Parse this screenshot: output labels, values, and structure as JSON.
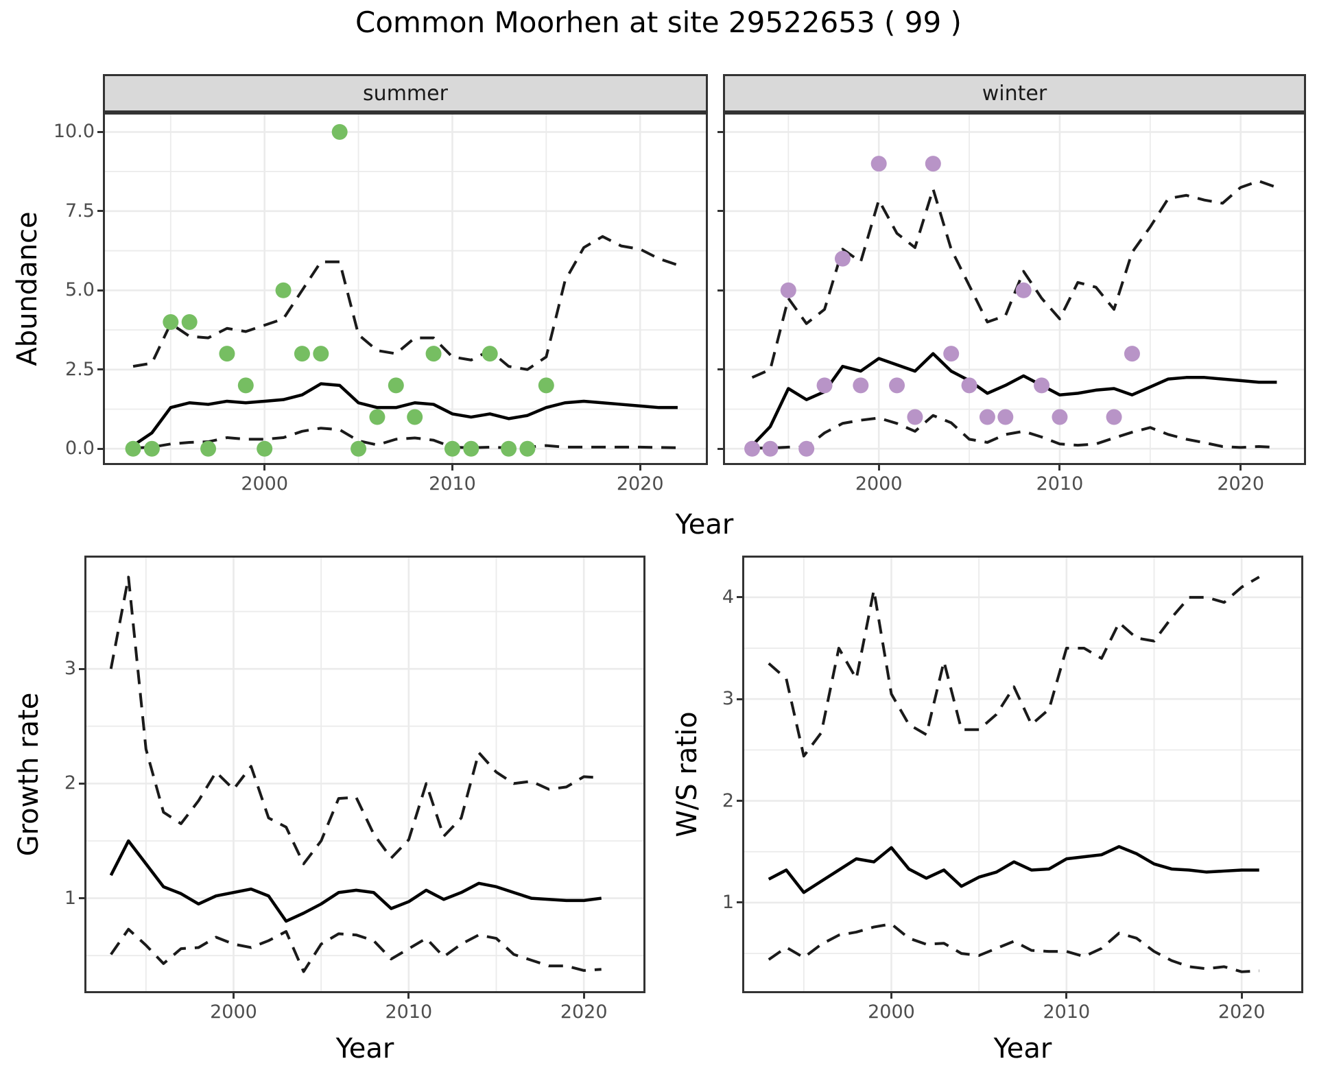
{
  "title": "Common Moorhen at site 29522653 ( 99 )",
  "facets": {
    "summer": "summer",
    "winter": "winter"
  },
  "axis_titles": {
    "abundance": "Abundance",
    "growth_rate": "Growth rate",
    "ws_ratio": "W/S ratio",
    "year": "Year"
  },
  "colors": {
    "summer_point": "#76be62",
    "winter_point": "#b894c7",
    "mean_line": "#000000",
    "ci_line": "#1a1a1a",
    "grid": "#ebebeb",
    "panel_border": "#333333",
    "strip_bg": "#d9d9d9",
    "tick_text": "#4d4d4d"
  },
  "chart_data": [
    {
      "id": "abundance-summer",
      "type": "line",
      "facet_label": "summer",
      "xlabel": "Year",
      "ylabel": "Abundance",
      "x_range": [
        1991.5,
        2023.5
      ],
      "y_range": [
        -0.45,
        10.55
      ],
      "x_ticks": [
        2000,
        2010,
        2020
      ],
      "x_minor": [
        1995,
        2005,
        2015
      ],
      "y_ticks": [
        0,
        2.5,
        5,
        7.5,
        10
      ],
      "y_tick_labels": [
        "0.0",
        "2.5",
        "5.0",
        "7.5",
        "10.0"
      ],
      "y_minor": [
        1.25,
        3.75,
        6.25,
        8.75
      ],
      "years": [
        1993,
        1994,
        1995,
        1996,
        1997,
        1998,
        1999,
        2000,
        2001,
        2002,
        2003,
        2004,
        2005,
        2006,
        2007,
        2008,
        2009,
        2010,
        2011,
        2012,
        2013,
        2014,
        2015,
        2016,
        2017,
        2018,
        2019,
        2020,
        2021,
        2022
      ],
      "series": {
        "mean": [
          0.1,
          0.5,
          1.3,
          1.45,
          1.4,
          1.5,
          1.45,
          1.5,
          1.55,
          1.7,
          2.05,
          2.0,
          1.45,
          1.3,
          1.3,
          1.45,
          1.4,
          1.1,
          1.0,
          1.1,
          0.95,
          1.05,
          1.3,
          1.45,
          1.5,
          1.45,
          1.4,
          1.35,
          1.3,
          1.3
        ],
        "upper_ci": [
          2.6,
          2.7,
          3.95,
          3.55,
          3.5,
          3.8,
          3.7,
          3.9,
          4.1,
          5.0,
          5.9,
          5.9,
          3.6,
          3.1,
          3.0,
          3.5,
          3.5,
          2.9,
          2.8,
          3.1,
          2.6,
          2.5,
          2.9,
          5.3,
          6.35,
          6.7,
          6.4,
          6.3,
          6.0,
          5.8
        ],
        "lower_ci": [
          0.02,
          0.05,
          0.15,
          0.2,
          0.22,
          0.35,
          0.3,
          0.3,
          0.35,
          0.55,
          0.65,
          0.6,
          0.25,
          0.12,
          0.3,
          0.34,
          0.27,
          0.05,
          0.03,
          0.05,
          0.03,
          0.05,
          0.1,
          0.05,
          0.05,
          0.05,
          0.05,
          0.05,
          0.04,
          0.03
        ]
      },
      "observed": {
        "years": [
          1993,
          1994,
          1995,
          1996,
          1997,
          1998,
          1999,
          2000,
          2001,
          2002,
          2003,
          2004,
          2005,
          2006,
          2007,
          2008,
          2009,
          2010,
          2011,
          2012,
          2013,
          2014,
          2015
        ],
        "values": [
          0,
          0,
          4,
          4,
          0,
          3,
          2,
          0,
          5,
          3,
          3,
          10,
          0,
          1,
          2,
          1,
          3,
          0,
          0,
          3,
          0,
          0,
          2
        ],
        "color": "#76be62"
      }
    },
    {
      "id": "abundance-winter",
      "type": "line",
      "facet_label": "winter",
      "xlabel": "Year",
      "ylabel": "Abundance",
      "x_range": [
        1991.5,
        2023.5
      ],
      "y_range": [
        -0.45,
        10.55
      ],
      "x_ticks": [
        2000,
        2010,
        2020
      ],
      "x_minor": [
        1995,
        2005,
        2015
      ],
      "y_ticks": [
        0,
        2.5,
        5,
        7.5,
        10
      ],
      "y_tick_labels": [
        "0.0",
        "2.5",
        "5.0",
        "7.5",
        "10.0"
      ],
      "y_minor": [
        1.25,
        3.75,
        6.25,
        8.75
      ],
      "hide_y_tick_labels": true,
      "years": [
        1993,
        1994,
        1995,
        1996,
        1997,
        1998,
        1999,
        2000,
        2001,
        2002,
        2003,
        2004,
        2005,
        2006,
        2007,
        2008,
        2009,
        2010,
        2011,
        2012,
        2013,
        2014,
        2015,
        2016,
        2017,
        2018,
        2019,
        2020,
        2021,
        2022
      ],
      "series": {
        "mean": [
          0.1,
          0.7,
          1.9,
          1.55,
          1.8,
          2.6,
          2.45,
          2.85,
          2.65,
          2.45,
          3.0,
          2.45,
          2.15,
          1.75,
          2.0,
          2.3,
          2.0,
          1.7,
          1.75,
          1.85,
          1.9,
          1.7,
          1.95,
          2.2,
          2.25,
          2.25,
          2.2,
          2.15,
          2.1,
          2.1
        ],
        "upper_ci": [
          2.25,
          2.5,
          4.75,
          3.95,
          4.4,
          6.3,
          5.9,
          7.85,
          6.8,
          6.35,
          8.2,
          6.3,
          5.15,
          4.0,
          4.2,
          5.6,
          4.75,
          4.1,
          5.25,
          5.1,
          4.4,
          6.2,
          7.0,
          7.9,
          8.0,
          7.85,
          7.75,
          8.25,
          8.45,
          8.25
        ],
        "lower_ci": [
          0.02,
          0.02,
          0.05,
          0.05,
          0.5,
          0.8,
          0.9,
          0.97,
          0.8,
          0.55,
          1.05,
          0.82,
          0.3,
          0.2,
          0.45,
          0.55,
          0.37,
          0.15,
          0.11,
          0.15,
          0.34,
          0.52,
          0.67,
          0.45,
          0.3,
          0.19,
          0.07,
          0.04,
          0.07,
          0.04
        ]
      },
      "observed": {
        "years": [
          1993,
          1994,
          1995,
          1996,
          1997,
          1998,
          1999,
          2000,
          2001,
          2002,
          2003,
          2004,
          2005,
          2006,
          2007,
          2008,
          2009,
          2010,
          2013,
          2014
        ],
        "values": [
          0,
          0,
          5,
          0,
          2,
          6,
          2,
          9,
          2,
          1,
          9,
          3,
          2,
          1,
          1,
          5,
          2,
          1,
          1,
          3
        ],
        "color": "#b894c7"
      }
    },
    {
      "id": "growth",
      "type": "line",
      "facet_label": "",
      "xlabel": "Year",
      "ylabel": "Growth rate",
      "x_range": [
        1991.6,
        2023.4
      ],
      "y_range": [
        0.19,
        3.97
      ],
      "x_ticks": [
        2000,
        2010,
        2020
      ],
      "x_minor": [
        1995,
        2005,
        2015
      ],
      "y_ticks": [
        1,
        2,
        3
      ],
      "y_tick_labels": [
        "1",
        "2",
        "3"
      ],
      "y_minor": [
        0.5,
        1.5,
        2.5,
        3.5
      ],
      "years": [
        1993,
        1994,
        1995,
        1996,
        1997,
        1998,
        1999,
        2000,
        2001,
        2002,
        2003,
        2004,
        2005,
        2006,
        2007,
        2008,
        2009,
        2010,
        2011,
        2012,
        2013,
        2014,
        2015,
        2016,
        2017,
        2018,
        2019,
        2020,
        2021
      ],
      "series": {
        "mean": [
          1.2,
          1.5,
          1.3,
          1.1,
          1.04,
          0.95,
          1.02,
          1.05,
          1.08,
          1.02,
          0.8,
          0.87,
          0.95,
          1.05,
          1.07,
          1.05,
          0.91,
          0.97,
          1.07,
          0.99,
          1.05,
          1.13,
          1.1,
          1.05,
          1.0,
          0.99,
          0.98,
          0.98,
          1.0
        ],
        "upper_ci": [
          3.0,
          3.8,
          2.3,
          1.75,
          1.65,
          1.85,
          2.1,
          1.95,
          2.15,
          1.7,
          1.62,
          1.3,
          1.5,
          1.87,
          1.88,
          1.56,
          1.35,
          1.51,
          2.0,
          1.54,
          1.7,
          2.27,
          2.1,
          2.0,
          2.02,
          1.95,
          1.97,
          2.06,
          2.05
        ],
        "lower_ci": [
          0.51,
          0.73,
          0.59,
          0.43,
          0.56,
          0.57,
          0.66,
          0.6,
          0.57,
          0.63,
          0.71,
          0.36,
          0.6,
          0.69,
          0.68,
          0.63,
          0.47,
          0.56,
          0.65,
          0.49,
          0.6,
          0.68,
          0.65,
          0.51,
          0.46,
          0.41,
          0.41,
          0.37,
          0.38
        ]
      },
      "observed": {
        "years": [],
        "values": [],
        "color": "#000000"
      }
    },
    {
      "id": "ws",
      "type": "line",
      "facet_label": "",
      "xlabel": "Year",
      "ylabel": "W/S ratio",
      "x_range": [
        1991.6,
        2023.4
      ],
      "y_range": [
        0.13,
        4.39
      ],
      "x_ticks": [
        2000,
        2010,
        2020
      ],
      "x_minor": [
        1995,
        2005,
        2015
      ],
      "y_ticks": [
        1,
        2,
        3,
        4
      ],
      "y_tick_labels": [
        "1",
        "2",
        "3",
        "4"
      ],
      "y_minor": [
        0.5,
        1.5,
        2.5,
        3.5
      ],
      "years": [
        1993,
        1994,
        1995,
        1996,
        1997,
        1998,
        1999,
        2000,
        2001,
        2002,
        2003,
        2004,
        2005,
        2006,
        2007,
        2008,
        2009,
        2010,
        2011,
        2012,
        2013,
        2014,
        2015,
        2016,
        2017,
        2018,
        2019,
        2020,
        2021
      ],
      "series": {
        "mean": [
          1.23,
          1.32,
          1.1,
          1.21,
          1.32,
          1.43,
          1.4,
          1.54,
          1.33,
          1.24,
          1.32,
          1.16,
          1.25,
          1.3,
          1.4,
          1.32,
          1.33,
          1.43,
          1.45,
          1.47,
          1.55,
          1.48,
          1.38,
          1.33,
          1.32,
          1.3,
          1.31,
          1.32,
          1.32
        ],
        "upper_ci": [
          3.35,
          3.2,
          2.44,
          2.67,
          3.5,
          3.2,
          4.07,
          3.05,
          2.75,
          2.65,
          3.37,
          2.7,
          2.7,
          2.85,
          3.12,
          2.75,
          2.9,
          3.5,
          3.5,
          3.4,
          3.75,
          3.6,
          3.57,
          3.8,
          4.0,
          4.0,
          3.95,
          4.1,
          4.2
        ],
        "lower_ci": [
          0.44,
          0.56,
          0.46,
          0.59,
          0.68,
          0.71,
          0.76,
          0.79,
          0.65,
          0.59,
          0.6,
          0.5,
          0.48,
          0.55,
          0.62,
          0.53,
          0.52,
          0.52,
          0.47,
          0.55,
          0.7,
          0.65,
          0.52,
          0.43,
          0.37,
          0.35,
          0.37,
          0.32,
          0.33
        ]
      },
      "observed": {
        "years": [],
        "values": [],
        "color": "#000000"
      }
    }
  ]
}
